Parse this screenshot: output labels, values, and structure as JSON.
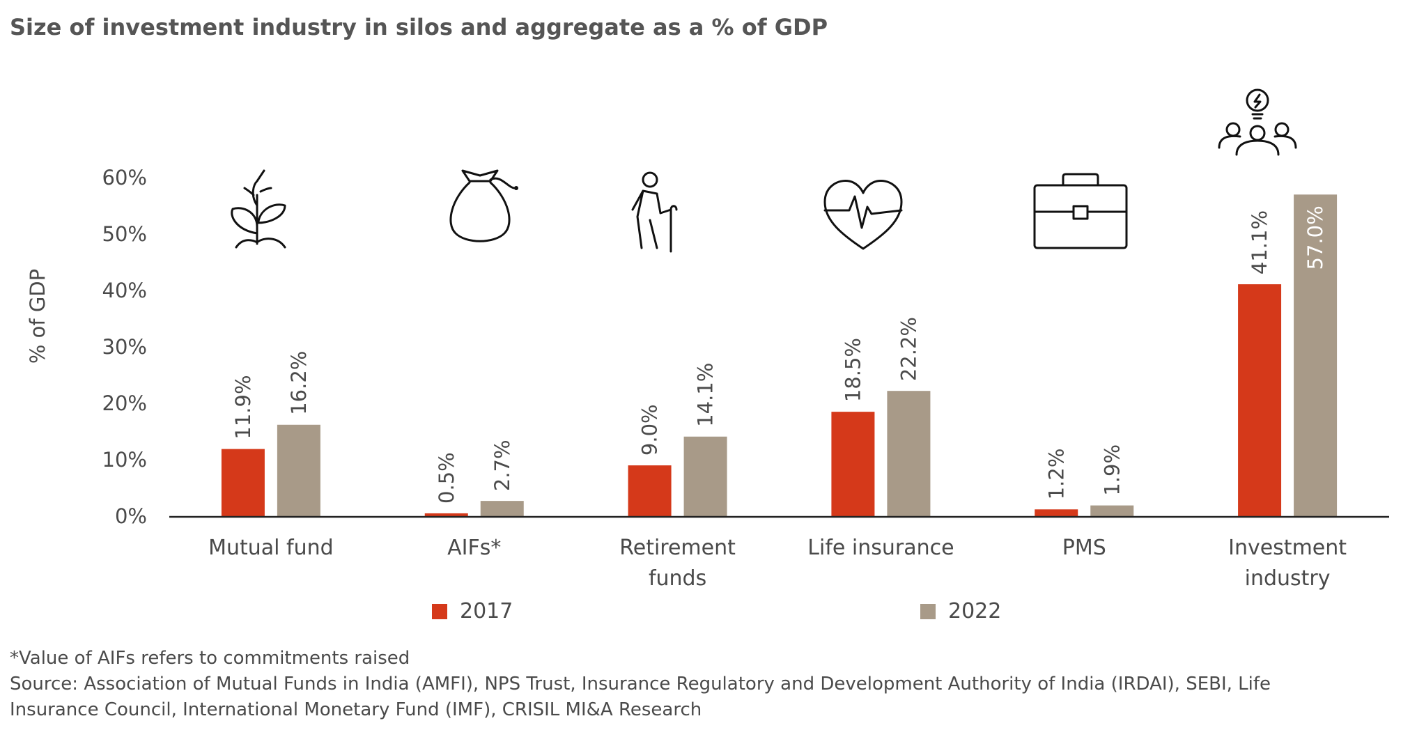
{
  "title": "Size of investment industry in silos and aggregate as a % of GDP",
  "chart_data": {
    "type": "bar",
    "title": "Size of investment industry in silos and aggregate as a % of GDP",
    "ylabel": "% of GDP",
    "xlabel": "",
    "ylim": [
      0,
      60
    ],
    "yticks": [
      "0%",
      "10%",
      "20%",
      "30%",
      "40%",
      "50%",
      "60%"
    ],
    "ytick_values": [
      0,
      10,
      20,
      30,
      40,
      50,
      60
    ],
    "grid": false,
    "legend_position": "bottom",
    "categories": [
      {
        "line1": "Mutual fund",
        "line2": "",
        "icon": "plant-icon"
      },
      {
        "line1": "AIFs*",
        "line2": "",
        "icon": "money-bag-icon"
      },
      {
        "line1": "Retirement",
        "line2": "funds",
        "icon": "elderly-person-icon"
      },
      {
        "line1": "Life insurance",
        "line2": "",
        "icon": "heartbeat-icon"
      },
      {
        "line1": "PMS",
        "line2": "",
        "icon": "briefcase-icon"
      },
      {
        "line1": "Investment",
        "line2": "industry",
        "icon": "people-idea-icon"
      }
    ],
    "series": [
      {
        "name": "2017",
        "color": "#D5391A",
        "values": [
          11.9,
          0.5,
          9.0,
          18.5,
          1.2,
          41.1
        ],
        "labels": [
          "11.9%",
          "0.5%",
          "9.0%",
          "18.5%",
          "1.2%",
          "41.1%"
        ]
      },
      {
        "name": "2022",
        "color": "#A89A88",
        "values": [
          16.2,
          2.7,
          14.1,
          22.2,
          1.9,
          57.0
        ],
        "labels": [
          "16.2%",
          "2.7%",
          "14.1%",
          "22.2%",
          "1.9%",
          "57.0%"
        ]
      }
    ]
  },
  "footnotes": [
    "*Value of AIFs refers to commitments raised",
    "Source: Association of Mutual Funds in India (AMFI), NPS Trust, Insurance Regulatory and Development Authority of India (IRDAI), SEBI, Life",
    "Insurance Council, International Monetary Fund (IMF), CRISIL MI&A Research"
  ]
}
